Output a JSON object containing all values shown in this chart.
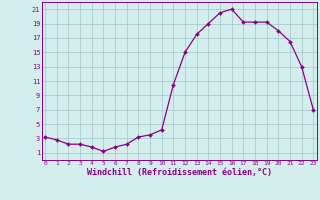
{
  "x_hours": [
    0,
    1,
    2,
    3,
    4,
    5,
    6,
    7,
    8,
    9,
    10,
    11,
    12,
    13,
    14,
    15,
    16,
    17,
    18,
    19,
    20,
    21,
    22,
    23
  ],
  "y_values": [
    3.2,
    2.8,
    2.2,
    2.2,
    1.8,
    1.2,
    1.8,
    2.2,
    3.2,
    3.5,
    4.2,
    10.5,
    15.0,
    17.5,
    19.0,
    20.5,
    21.0,
    19.2,
    19.2,
    19.2,
    18.0,
    16.5,
    13.0,
    7.0
  ],
  "line_color": "#880088",
  "marker_color": "#880088",
  "bg_color": "#d4eeee",
  "grid_color": "#aacccc",
  "xlabel": "Windchill (Refroidissement éolien,°C)",
  "xlabel_color": "#880088",
  "ylim_min": 0,
  "ylim_max": 22,
  "yticks": [
    1,
    3,
    5,
    7,
    9,
    11,
    13,
    15,
    17,
    19,
    21
  ],
  "xticks": [
    0,
    1,
    2,
    3,
    4,
    5,
    6,
    7,
    8,
    9,
    10,
    11,
    12,
    13,
    14,
    15,
    16,
    17,
    18,
    19,
    20,
    21,
    22,
    23
  ],
  "xlim_min": -0.3,
  "xlim_max": 23.3
}
